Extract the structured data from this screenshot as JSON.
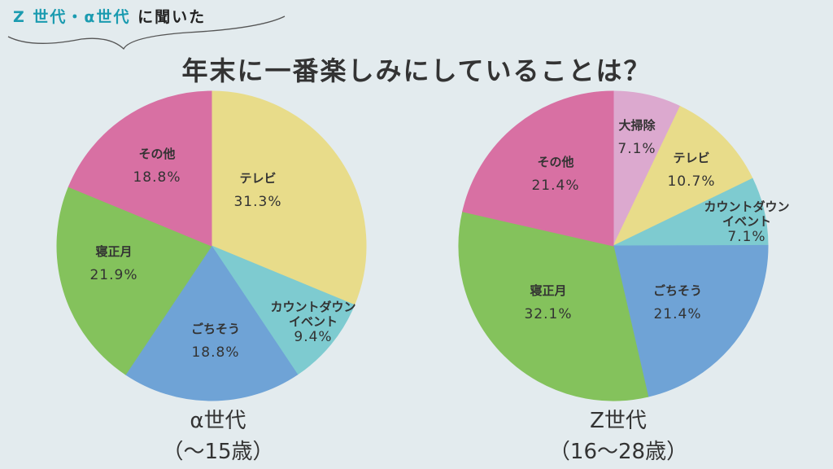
{
  "header": {
    "subtitle_highlight": "Z 世代・α世代",
    "subtitle_rest": "に聞いた",
    "title": "年末に一番楽しみにしていることは？"
  },
  "chart_data": [
    {
      "type": "pie",
      "title": "α世代",
      "subtitle": "（～15歳）",
      "categories": [
        "テレビ",
        "カウントダウンイベント",
        "ごちそう",
        "寝正月",
        "その他"
      ],
      "labels": [
        "テレビ",
        "カウントダウン\nイベント",
        "ごちそう",
        "寝正月",
        "その他"
      ],
      "values": [
        31.3,
        9.4,
        18.8,
        21.9,
        18.8
      ],
      "value_labels": [
        "31.3%",
        "9.4%",
        "18.8%",
        "21.9%",
        "18.8%"
      ],
      "colors": [
        "#e8dc8a",
        "#7ecbd0",
        "#6fa3d6",
        "#84c25c",
        "#d870a3"
      ]
    },
    {
      "type": "pie",
      "title": "Z世代",
      "subtitle": "（16～28歳）",
      "categories": [
        "大掃除",
        "テレビ",
        "カウントダウンイベント",
        "ごちそう",
        "寝正月",
        "その他"
      ],
      "labels": [
        "大掃除",
        "テレビ",
        "カウントダウン\nイベント",
        "ごちそう",
        "寝正月",
        "その他"
      ],
      "values": [
        7.1,
        10.7,
        7.1,
        21.4,
        32.1,
        21.4
      ],
      "value_labels": [
        "7.1%",
        "10.7%",
        "7.1%",
        "21.4%",
        "32.1%",
        "21.4%"
      ],
      "colors": [
        "#dca9cf",
        "#e8dc8a",
        "#7ecbd0",
        "#6fa3d6",
        "#84c25c",
        "#d870a3"
      ]
    }
  ]
}
